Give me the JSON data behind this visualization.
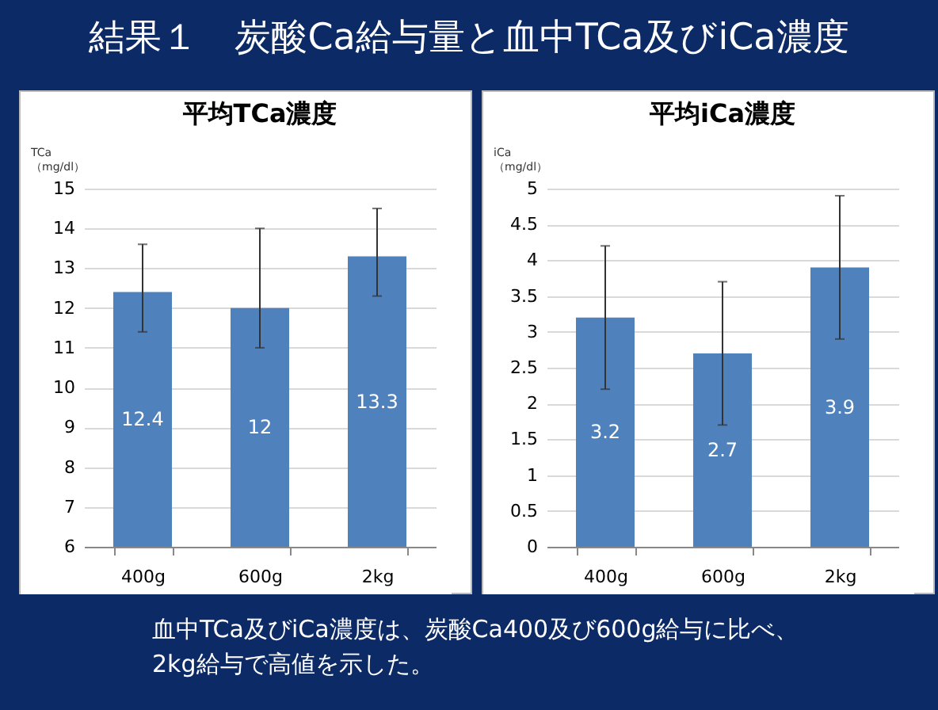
{
  "chart_data": [
    {
      "type": "bar",
      "title": "平均TCa濃度",
      "ylabel": "TCa\n（mg/dl）",
      "categories": [
        "400g",
        "600g",
        "2kg"
      ],
      "values": [
        12.4,
        12,
        13.3
      ],
      "errors": [
        [
          11.4,
          13.6
        ],
        [
          11,
          14
        ],
        [
          12.3,
          14.5
        ]
      ],
      "color": "#4f81bd",
      "ylim": [
        6,
        15
      ],
      "yticks": [
        6,
        7,
        8,
        9,
        10,
        11,
        12,
        13,
        14,
        15
      ],
      "grid": "y",
      "data_labels": true,
      "annotations": [
        "結果１　炭酸Ca給与量と血中TCa及びiCa濃度",
        "血中TCa及びiCa濃度は、炭酸Ca400及び600g給与に比べ、\n2kg給与で高値を示した。"
      ]
    },
    {
      "type": "bar",
      "title": "平均iCa濃度",
      "ylabel": "iCa\n（mg/dl）",
      "categories": [
        "400g",
        "600g",
        "2kg"
      ],
      "values": [
        3.2,
        2.7,
        3.9
      ],
      "errors": [
        [
          2.2,
          4.2
        ],
        [
          1.7,
          3.7
        ],
        [
          2.9,
          4.9
        ]
      ],
      "color": "#4f81bd",
      "ylim": [
        0,
        5
      ],
      "yticks": [
        0,
        0.5,
        1,
        1.5,
        2,
        2.5,
        3,
        3.5,
        4,
        4.5,
        5
      ],
      "grid": "y",
      "data_labels": true
    }
  ]
}
